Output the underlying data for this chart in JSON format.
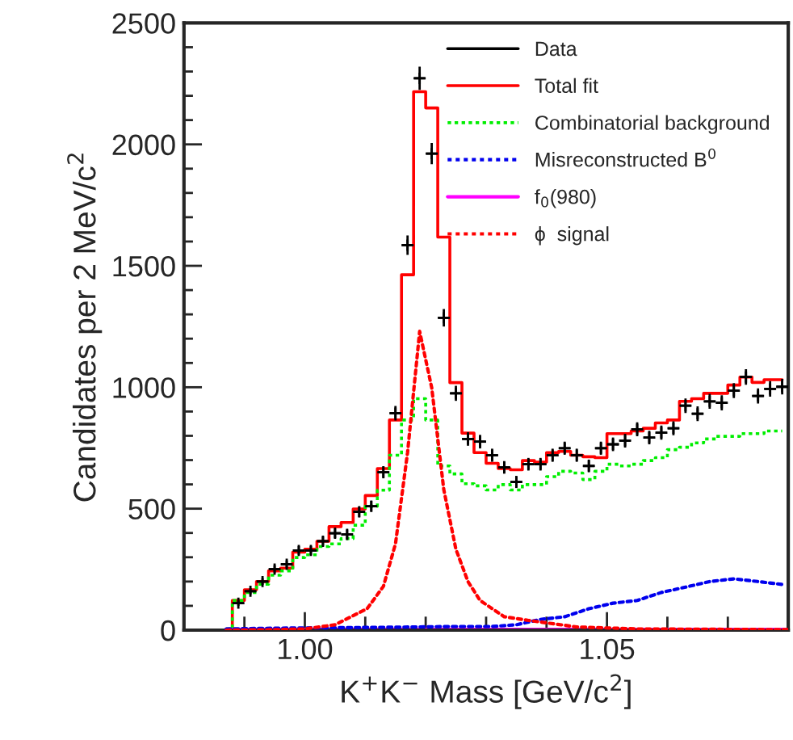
{
  "chart_data": {
    "type": "step",
    "xlabel": "K$^{+}$K$^{−}$ Mass [GeV/c$^{2}$]",
    "ylabel": "Candidates per 2 MeV/c$^{2}$",
    "xlim": [
      0.98,
      1.08
    ],
    "ylim": [
      0,
      2500
    ],
    "xticks": [
      {
        "value": 0.99,
        "label": null
      },
      {
        "value": 1.0,
        "label": "1.00"
      },
      {
        "value": 1.01,
        "label": null
      },
      {
        "value": 1.02,
        "label": null
      },
      {
        "value": 1.03,
        "label": null
      },
      {
        "value": 1.04,
        "label": null
      },
      {
        "value": 1.05,
        "label": "1.05"
      },
      {
        "value": 1.06,
        "label": null
      },
      {
        "value": 1.07,
        "label": null
      },
      {
        "value": 1.08,
        "label": null
      }
    ],
    "yticks": [
      0,
      {
        "value": 100,
        "label": null
      },
      {
        "value": 200,
        "label": null
      },
      {
        "value": 300,
        "label": null
      },
      {
        "value": 400,
        "label": null
      },
      500,
      {
        "value": 600,
        "label": null
      },
      {
        "value": 700,
        "label": null
      },
      {
        "value": 800,
        "label": null
      },
      {
        "value": 900,
        "label": null
      },
      1000,
      {
        "value": 1100,
        "label": null
      },
      {
        "value": 1200,
        "label": null
      },
      {
        "value": 1300,
        "label": null
      },
      {
        "value": 1400,
        "label": null
      },
      1500,
      {
        "value": 1600,
        "label": null
      },
      {
        "value": 1700,
        "label": null
      },
      {
        "value": 1800,
        "label": null
      },
      {
        "value": 1900,
        "label": null
      },
      2000,
      {
        "value": 2100,
        "label": null
      },
      {
        "value": 2200,
        "label": null
      },
      {
        "value": 2300,
        "label": null
      },
      {
        "value": 2400,
        "label": null
      },
      2500
    ],
    "legend": "top right",
    "grid": false,
    "series": [
      {
        "name": "Data",
        "type": "scatter",
        "marker": "cross",
        "color": "#000000",
        "x": [
          0.989,
          0.991,
          0.993,
          0.995,
          0.997,
          0.999,
          1.001,
          1.003,
          1.005,
          1.007,
          1.009,
          1.011,
          1.013,
          1.015,
          1.017,
          1.019,
          1.021,
          1.023,
          1.025,
          1.027,
          1.029,
          1.031,
          1.033,
          1.035,
          1.037,
          1.039,
          1.041,
          1.043,
          1.045,
          1.047,
          1.049,
          1.051,
          1.053,
          1.055,
          1.057,
          1.059,
          1.061,
          1.063,
          1.065,
          1.067,
          1.069,
          1.071,
          1.073,
          1.075,
          1.077,
          1.079
        ],
        "values": [
          111,
          160,
          200,
          251,
          271,
          328,
          328,
          366,
          399,
          394,
          487,
          510,
          650,
          893,
          1585,
          2272,
          1962,
          1286,
          975,
          787,
          776,
          720,
          670,
          610,
          683,
          683,
          720,
          749,
          720,
          676,
          749,
          765,
          780,
          827,
          793,
          813,
          831,
          924,
          891,
          942,
          936,
          986,
          1042,
          964,
          993,
          1002
        ],
        "errors": [
          11,
          13,
          14,
          16,
          16,
          18,
          18,
          19,
          20,
          20,
          22,
          23,
          25,
          30,
          40,
          48,
          44,
          36,
          31,
          28,
          28,
          27,
          26,
          25,
          26,
          26,
          27,
          27,
          27,
          26,
          27,
          28,
          28,
          29,
          28,
          29,
          29,
          30,
          30,
          31,
          31,
          31,
          32,
          31,
          32,
          32
        ],
        "xerrors": [
          0.001,
          0.001,
          0.001,
          0.001,
          0.001,
          0.001,
          0.001,
          0.001,
          0.001,
          0.001,
          0.001,
          0.001,
          0.001,
          0.001,
          0.001,
          0.001,
          0.001,
          0.001,
          0.001,
          0.001,
          0.001,
          0.001,
          0.001,
          0.001,
          0.001,
          0.001,
          0.001,
          0.001,
          0.001,
          0.001,
          0.001,
          0.001,
          0.001,
          0.001,
          0.001,
          0.001,
          0.001,
          0.001,
          0.001,
          0.001,
          0.001,
          0.001,
          0.001,
          0.001,
          0.001,
          0.001
        ]
      },
      {
        "name": "Total fit",
        "line_style": "solid",
        "color": "#ff0000",
        "x": [
          0.987,
          0.989,
          0.991,
          0.993,
          0.995,
          0.997,
          0.999,
          1.001,
          1.003,
          1.005,
          1.007,
          1.009,
          1.011,
          1.013,
          1.015,
          1.017,
          1.019,
          1.021,
          1.023,
          1.025,
          1.027,
          1.029,
          1.031,
          1.033,
          1.035,
          1.037,
          1.039,
          1.041,
          1.043,
          1.045,
          1.047,
          1.049,
          1.051,
          1.053,
          1.055,
          1.057,
          1.059,
          1.061,
          1.063,
          1.065,
          1.067,
          1.069,
          1.071,
          1.073,
          1.075,
          1.077,
          1.079
        ],
        "values": [
          5,
          122,
          166,
          200,
          244,
          255,
          321,
          333,
          366,
          426,
          443,
          499,
          554,
          665,
          865,
          1463,
          2217,
          2150,
          1618,
          1019,
          811,
          731,
          687,
          665,
          660,
          698,
          692,
          731,
          736,
          720,
          714,
          710,
          809,
          809,
          820,
          831,
          853,
          865,
          942,
          953,
          975,
          975,
          1009,
          1042,
          1020,
          1031,
          1031
        ]
      },
      {
        "name": "Combinatorial background",
        "line_style": "dotted",
        "color": "#00ee00",
        "x": [
          0.987,
          0.989,
          0.991,
          0.993,
          0.995,
          0.997,
          0.999,
          1.001,
          1.003,
          1.005,
          1.007,
          1.009,
          1.011,
          1.013,
          1.015,
          1.017,
          1.019,
          1.021,
          1.023,
          1.025,
          1.027,
          1.029,
          1.031,
          1.033,
          1.035,
          1.037,
          1.039,
          1.041,
          1.043,
          1.045,
          1.047,
          1.049,
          1.051,
          1.053,
          1.055,
          1.057,
          1.059,
          1.061,
          1.063,
          1.065,
          1.067,
          1.069,
          1.071,
          1.073,
          1.075,
          1.077,
          1.079
        ],
        "values": [
          5,
          122,
          155,
          189,
          226,
          244,
          299,
          310,
          344,
          355,
          377,
          432,
          510,
          576,
          720,
          865,
          953,
          865,
          676,
          643,
          603,
          594,
          577,
          599,
          577,
          599,
          599,
          632,
          654,
          647,
          620,
          654,
          683,
          676,
          683,
          698,
          710,
          743,
          753,
          771,
          787,
          798,
          798,
          809,
          809,
          820,
          820
        ]
      },
      {
        "name": "Misreconstructed B$^{0}$",
        "type": "line",
        "line_style": "dotted",
        "color": "#0000ee",
        "x": [
          0.987,
          0.995,
          1.005,
          1.015,
          1.025,
          1.031,
          1.035,
          1.039,
          1.043,
          1.047,
          1.051,
          1.055,
          1.059,
          1.063,
          1.067,
          1.071,
          1.075,
          1.079
        ],
        "values": [
          5,
          8,
          10,
          12,
          15,
          15,
          22,
          44,
          55,
          88,
          111,
          122,
          155,
          177,
          200,
          211,
          200,
          188
        ]
      },
      {
        "name": "f$_{0}$(980)",
        "type": "line",
        "line_style": "solid",
        "color": "#ff00ff",
        "x": [
          0.987,
          1.0,
          1.02,
          1.04,
          1.06,
          1.08
        ],
        "values": [
          3,
          3,
          3,
          3,
          3,
          3
        ]
      },
      {
        "name": "ϕ  signal",
        "type": "line",
        "line_style": "dotted",
        "color": "#ff0000",
        "x": [
          0.987,
          0.995,
          1.0,
          1.005,
          1.0103,
          1.013,
          1.015,
          1.017,
          1.019,
          1.021,
          1.023,
          1.025,
          1.027,
          1.029,
          1.033,
          1.037,
          1.045,
          1.055,
          1.08
        ],
        "values": [
          0,
          2,
          5,
          22,
          88,
          180,
          355,
          731,
          1230,
          998,
          578,
          333,
          200,
          122,
          55,
          40,
          13,
          5,
          2
        ]
      }
    ]
  }
}
